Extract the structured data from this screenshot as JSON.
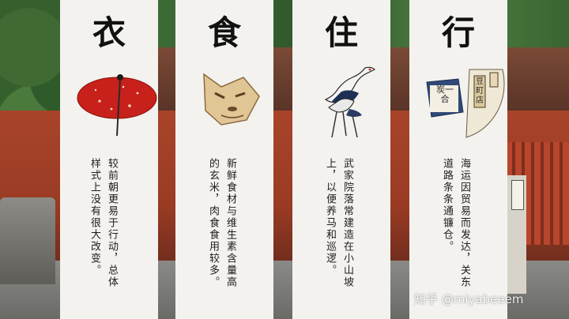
{
  "panels": [
    {
      "title": "衣",
      "art_icon": "red-umbrella-icon",
      "lines": [
        "较前朝更易于行动，总体",
        "样式上没有很大改变。"
      ]
    },
    {
      "title": "食",
      "art_icon": "fox-mask-icon",
      "lines": [
        "新鲜食材与维生素含量高",
        "的玄米，肉食食用较多。"
      ]
    },
    {
      "title": "住",
      "art_icon": "cranes-icon",
      "lines": [
        "武家院落常建造在小山坡",
        "上，以便养马和巡逻。"
      ]
    },
    {
      "title": "行",
      "art_icon": "shop-signs-icon",
      "sign_texts": [
        "炭",
        "一",
        "合",
        "豆",
        "町",
        "店"
      ],
      "lines": [
        "海运因贸易而发达，关东",
        "道路条条通镰仓。"
      ]
    }
  ],
  "watermark": "知乎 @miyabeeem",
  "colors": {
    "panel": "#f3f2ef",
    "umbrella": "#c8201a",
    "text": "#1d1d1d"
  }
}
